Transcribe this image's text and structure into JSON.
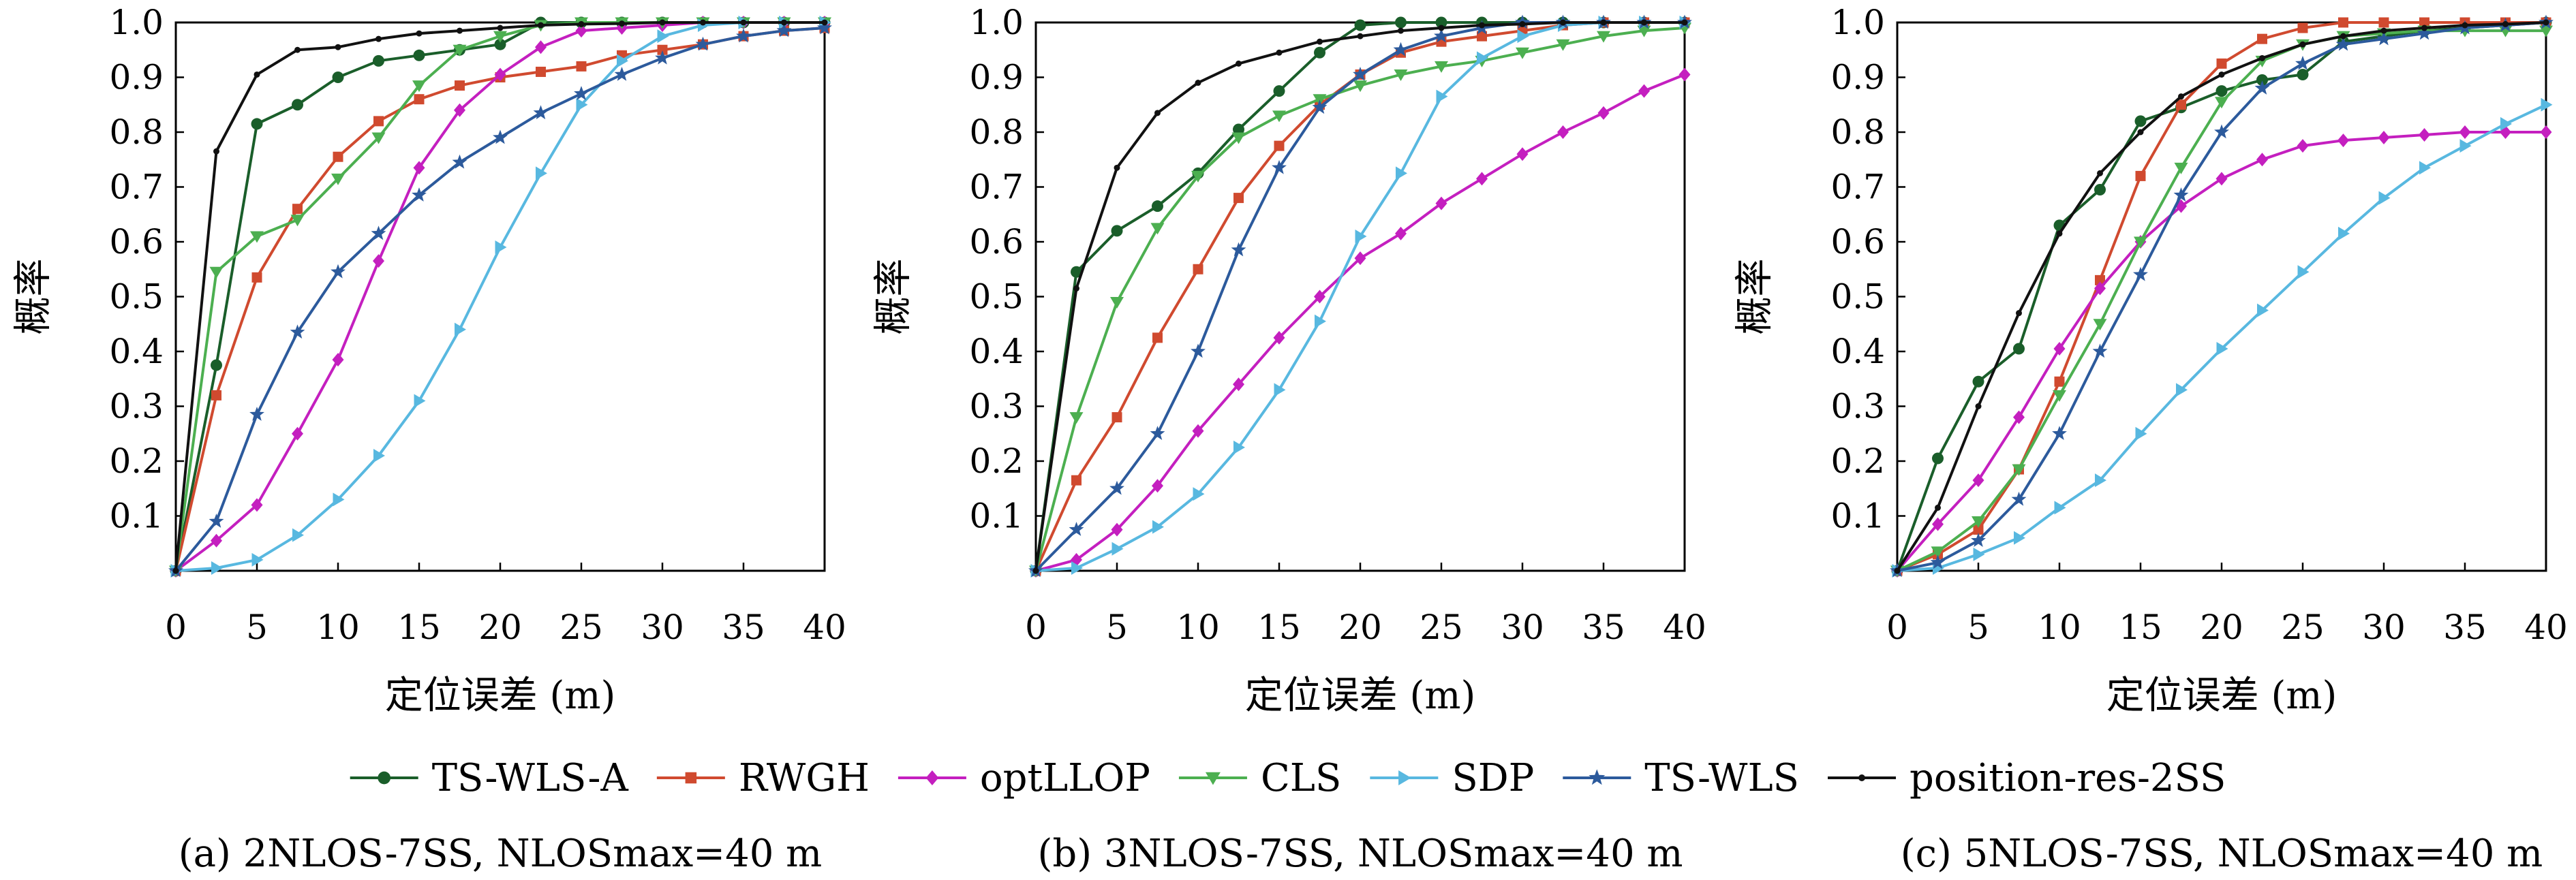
{
  "legend": {
    "entries": [
      {
        "name": "TS-WLS-A",
        "color": "#1a5e2a",
        "marker": "circle"
      },
      {
        "name": "RWGH",
        "color": "#d04a2f",
        "marker": "square"
      },
      {
        "name": "optLLOP",
        "color": "#c41fbf",
        "marker": "diamond"
      },
      {
        "name": "CLS",
        "color": "#4caf50",
        "marker": "triangle-down"
      },
      {
        "name": "SDP",
        "color": "#58b8e0",
        "marker": "triangle-right"
      },
      {
        "name": "TS-WLS",
        "color": "#2c5a9c",
        "marker": "star"
      },
      {
        "name": "position-res-2SS",
        "color": "#111111",
        "marker": "small-dot"
      }
    ]
  },
  "chart_data": [
    {
      "type": "line",
      "caption": "(a) 2NLOS-7SS, NLOSmax=40 m",
      "xlabel": "定位误差 (m)",
      "ylabel": "概率",
      "xlim": [
        0,
        40
      ],
      "ylim": [
        0,
        1.0
      ],
      "xticks": [
        0,
        5,
        10,
        15,
        20,
        25,
        30,
        35,
        40
      ],
      "yticks": [
        0.1,
        0.2,
        0.3,
        0.4,
        0.5,
        0.6,
        0.7,
        0.8,
        0.9,
        1.0
      ],
      "grid": false,
      "x": [
        0,
        2.5,
        5,
        7.5,
        10,
        12.5,
        15,
        17.5,
        20,
        22.5,
        25,
        27.5,
        30,
        32.5,
        35,
        37.5,
        40
      ],
      "series": [
        {
          "name": "TS-WLS-A",
          "values": [
            0,
            0.375,
            0.815,
            0.85,
            0.9,
            0.93,
            0.94,
            0.95,
            0.96,
            1.0,
            1.0,
            1.0,
            1.0,
            1.0,
            1.0,
            1.0,
            1.0
          ]
        },
        {
          "name": "RWGH",
          "values": [
            0,
            0.32,
            0.535,
            0.66,
            0.755,
            0.82,
            0.86,
            0.885,
            0.9,
            0.91,
            0.92,
            0.94,
            0.95,
            0.96,
            0.975,
            0.985,
            0.99
          ]
        },
        {
          "name": "optLLOP",
          "values": [
            0,
            0.055,
            0.12,
            0.25,
            0.385,
            0.565,
            0.735,
            0.84,
            0.905,
            0.955,
            0.985,
            0.99,
            0.995,
            1.0,
            1.0,
            1.0,
            1.0
          ]
        },
        {
          "name": "CLS",
          "values": [
            0,
            0.545,
            0.61,
            0.64,
            0.715,
            0.79,
            0.885,
            0.95,
            0.975,
            0.995,
            1.0,
            1.0,
            1.0,
            1.0,
            1.0,
            1.0,
            1.0
          ]
        },
        {
          "name": "SDP",
          "values": [
            0,
            0.005,
            0.02,
            0.065,
            0.13,
            0.21,
            0.31,
            0.44,
            0.59,
            0.725,
            0.85,
            0.93,
            0.975,
            0.995,
            1.0,
            1.0,
            1.0
          ]
        },
        {
          "name": "TS-WLS",
          "values": [
            0,
            0.09,
            0.285,
            0.435,
            0.545,
            0.615,
            0.685,
            0.745,
            0.79,
            0.835,
            0.87,
            0.905,
            0.935,
            0.96,
            0.975,
            0.985,
            0.99
          ]
        },
        {
          "name": "position-res-2SS",
          "values": [
            0,
            0.765,
            0.905,
            0.95,
            0.955,
            0.97,
            0.98,
            0.985,
            0.99,
            0.995,
            0.997,
            0.998,
            1.0,
            1.0,
            1.0,
            1.0,
            1.0
          ]
        }
      ]
    },
    {
      "type": "line",
      "caption": "(b) 3NLOS-7SS, NLOSmax=40 m",
      "xlabel": "定位误差 (m)",
      "ylabel": "概率",
      "xlim": [
        0,
        40
      ],
      "ylim": [
        0,
        1.0
      ],
      "xticks": [
        0,
        5,
        10,
        15,
        20,
        25,
        30,
        35,
        40
      ],
      "yticks": [
        0.1,
        0.2,
        0.3,
        0.4,
        0.5,
        0.6,
        0.7,
        0.8,
        0.9,
        1.0
      ],
      "grid": false,
      "x": [
        0,
        2.5,
        5,
        7.5,
        10,
        12.5,
        15,
        17.5,
        20,
        22.5,
        25,
        27.5,
        30,
        32.5,
        35,
        37.5,
        40
      ],
      "series": [
        {
          "name": "TS-WLS-A",
          "values": [
            0,
            0.545,
            0.62,
            0.665,
            0.725,
            0.805,
            0.875,
            0.945,
            0.995,
            1.0,
            1.0,
            1.0,
            1.0,
            1.0,
            1.0,
            1.0,
            1.0
          ]
        },
        {
          "name": "RWGH",
          "values": [
            0,
            0.165,
            0.28,
            0.425,
            0.55,
            0.68,
            0.775,
            0.85,
            0.905,
            0.945,
            0.965,
            0.975,
            0.985,
            0.995,
            1.0,
            1.0,
            1.0
          ]
        },
        {
          "name": "optLLOP",
          "values": [
            0,
            0.02,
            0.075,
            0.155,
            0.255,
            0.34,
            0.425,
            0.5,
            0.57,
            0.615,
            0.67,
            0.715,
            0.76,
            0.8,
            0.835,
            0.875,
            0.905
          ]
        },
        {
          "name": "CLS",
          "values": [
            0,
            0.28,
            0.49,
            0.625,
            0.72,
            0.79,
            0.83,
            0.86,
            0.885,
            0.905,
            0.92,
            0.93,
            0.945,
            0.96,
            0.975,
            0.985,
            0.99
          ]
        },
        {
          "name": "SDP",
          "values": [
            0,
            0.005,
            0.04,
            0.08,
            0.14,
            0.225,
            0.33,
            0.455,
            0.61,
            0.725,
            0.865,
            0.935,
            0.975,
            0.995,
            1.0,
            1.0,
            1.0
          ]
        },
        {
          "name": "TS-WLS",
          "values": [
            0,
            0.075,
            0.15,
            0.25,
            0.4,
            0.585,
            0.735,
            0.845,
            0.905,
            0.95,
            0.975,
            0.99,
            1.0,
            1.0,
            1.0,
            1.0,
            1.0
          ]
        },
        {
          "name": "position-res-2SS",
          "values": [
            0,
            0.515,
            0.735,
            0.835,
            0.89,
            0.925,
            0.945,
            0.965,
            0.975,
            0.985,
            0.99,
            0.995,
            0.997,
            1.0,
            1.0,
            1.0,
            1.0
          ]
        }
      ]
    },
    {
      "type": "line",
      "caption": "(c) 5NLOS-7SS, NLOSmax=40 m",
      "xlabel": "定位误差 (m)",
      "ylabel": "概率",
      "xlim": [
        0,
        40
      ],
      "ylim": [
        0,
        1.0
      ],
      "xticks": [
        0,
        5,
        10,
        15,
        20,
        25,
        30,
        35,
        40
      ],
      "yticks": [
        0.1,
        0.2,
        0.3,
        0.4,
        0.5,
        0.6,
        0.7,
        0.8,
        0.9,
        1.0
      ],
      "grid": false,
      "x": [
        0,
        2.5,
        5,
        7.5,
        10,
        12.5,
        15,
        17.5,
        20,
        22.5,
        25,
        27.5,
        30,
        32.5,
        35,
        37.5,
        40
      ],
      "series": [
        {
          "name": "TS-WLS-A",
          "values": [
            0,
            0.205,
            0.345,
            0.405,
            0.63,
            0.695,
            0.82,
            0.845,
            0.875,
            0.895,
            0.905,
            0.965,
            0.975,
            0.985,
            0.99,
            0.995,
            1.0
          ]
        },
        {
          "name": "RWGH",
          "values": [
            0,
            0.03,
            0.075,
            0.185,
            0.345,
            0.53,
            0.72,
            0.85,
            0.925,
            0.97,
            0.99,
            1.0,
            1.0,
            1.0,
            1.0,
            1.0,
            1.0
          ]
        },
        {
          "name": "optLLOP",
          "values": [
            0,
            0.085,
            0.165,
            0.28,
            0.405,
            0.515,
            0.6,
            0.665,
            0.715,
            0.75,
            0.775,
            0.785,
            0.79,
            0.795,
            0.8,
            0.8,
            0.8
          ]
        },
        {
          "name": "CLS",
          "values": [
            0,
            0.035,
            0.09,
            0.185,
            0.32,
            0.45,
            0.6,
            0.735,
            0.855,
            0.93,
            0.96,
            0.975,
            0.98,
            0.985,
            0.985,
            0.985,
            0.985
          ]
        },
        {
          "name": "SDP",
          "values": [
            0,
            0.005,
            0.03,
            0.06,
            0.115,
            0.165,
            0.25,
            0.33,
            0.405,
            0.475,
            0.545,
            0.615,
            0.68,
            0.735,
            0.775,
            0.815,
            0.85
          ]
        },
        {
          "name": "TS-WLS",
          "values": [
            0,
            0.015,
            0.055,
            0.13,
            0.25,
            0.4,
            0.54,
            0.685,
            0.8,
            0.88,
            0.925,
            0.96,
            0.97,
            0.98,
            0.99,
            0.995,
            1.0
          ]
        },
        {
          "name": "position-res-2SS",
          "values": [
            0,
            0.115,
            0.3,
            0.47,
            0.615,
            0.725,
            0.8,
            0.865,
            0.905,
            0.935,
            0.96,
            0.975,
            0.985,
            0.99,
            0.995,
            0.997,
            1.0
          ]
        }
      ]
    }
  ]
}
